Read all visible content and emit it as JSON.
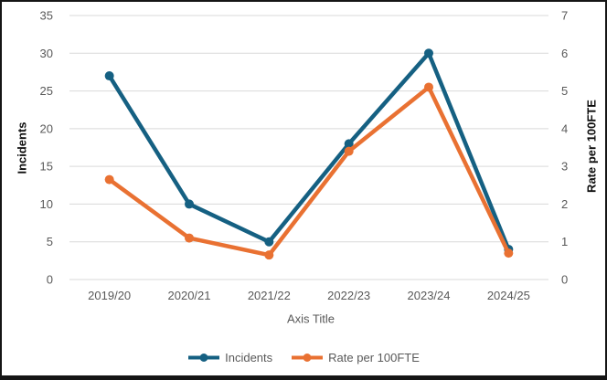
{
  "chart_data": {
    "type": "line",
    "categories": [
      "2019/20",
      "2020/21",
      "2021/22",
      "2022/23",
      "2023/24",
      "2024/25"
    ],
    "series": [
      {
        "name": "Incidents",
        "axis": "left",
        "color": "#156082",
        "marker": "circle",
        "values": [
          27,
          10,
          5,
          18,
          30,
          4
        ]
      },
      {
        "name": "Rate per 100FTE",
        "axis": "right",
        "color": "#E97132",
        "marker": "circle",
        "values": [
          2.65,
          1.1,
          0.65,
          3.4,
          5.1,
          0.7
        ]
      }
    ],
    "title": "",
    "xlabel": "Axis Title",
    "ylabel_left": "Incidents",
    "ylabel_right": "Rate per 100FTE",
    "left_axis": {
      "min": 0,
      "max": 35,
      "ticks": [
        0,
        5,
        10,
        15,
        20,
        25,
        30,
        35
      ]
    },
    "right_axis": {
      "min": 0,
      "max": 7,
      "ticks": [
        0,
        1,
        2,
        3,
        4,
        5,
        6,
        7
      ]
    },
    "grid": true,
    "legend_position": "bottom",
    "colors": {
      "grid": "#D9D9D9",
      "tick_text": "#595959",
      "axis_title_text": "#0D0D0D",
      "background": "#FFFFFF",
      "frame_border": "#151515"
    }
  }
}
